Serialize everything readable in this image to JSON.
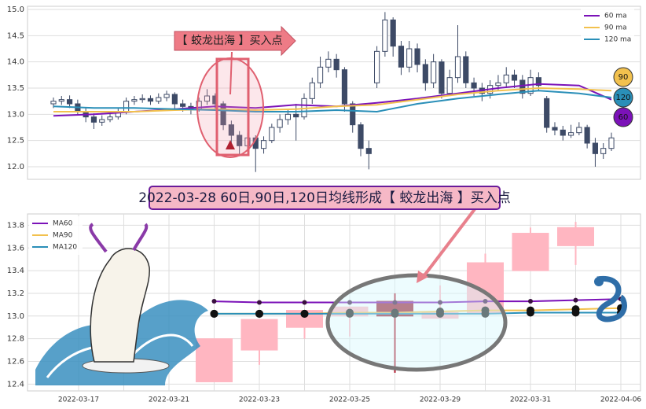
{
  "chart_data": [
    {
      "type": "candlestick",
      "annotation": "【 蛟龙出海 】买入点",
      "ylim": [
        11.76,
        15.06
      ],
      "yticks": [
        {
          "value": 12,
          "label": "12.0"
        },
        12.5,
        {
          "value": 13,
          "label": "13.0"
        },
        13.5,
        {
          "value": 14,
          "label": "14.0"
        },
        14.5,
        {
          "value": 15,
          "label": "15.0"
        }
      ],
      "grid": true,
      "legend": "upper right",
      "up_color": "#ffffff",
      "down_color": "#3d4a66",
      "edge_color": "#3d4a66",
      "open": [
        13.2,
        13.25,
        13.28,
        13.2,
        13.05,
        12.95,
        12.85,
        12.9,
        12.95,
        13.05,
        13.25,
        13.28,
        13.3,
        13.25,
        13.32,
        13.38,
        13.2,
        13.15,
        13.1,
        13.25,
        13.35,
        13.2,
        12.8,
        12.6,
        12.4,
        12.55,
        12.35,
        12.5,
        12.75,
        12.9,
        13.0,
        12.95,
        13.3,
        13.6,
        13.9,
        14.05,
        13.85,
        13.2,
        12.8,
        12.35,
        13.6,
        14.2,
        14.8,
        14.3,
        13.9,
        14.25,
        13.95,
        13.6,
        14.0,
        13.4,
        13.7,
        14.1,
        13.6,
        13.5,
        13.4,
        13.55,
        13.6,
        13.75,
        13.65,
        13.4,
        13.7,
        13.3,
        12.75,
        12.7,
        12.6,
        12.65,
        12.75,
        12.45,
        12.25,
        12.35
      ],
      "close": [
        13.25,
        13.28,
        13.2,
        13.05,
        12.95,
        12.85,
        12.9,
        12.95,
        13.05,
        13.25,
        13.28,
        13.3,
        13.25,
        13.32,
        13.38,
        13.2,
        13.15,
        13.1,
        13.25,
        13.35,
        13.2,
        12.8,
        12.6,
        12.4,
        12.55,
        12.35,
        12.5,
        12.75,
        12.9,
        13.0,
        12.95,
        13.3,
        13.6,
        13.9,
        14.05,
        13.85,
        13.2,
        12.8,
        12.35,
        12.25,
        14.2,
        14.8,
        14.3,
        13.9,
        14.25,
        13.95,
        13.6,
        14.0,
        13.4,
        13.7,
        14.1,
        13.6,
        13.5,
        13.4,
        13.55,
        13.6,
        13.75,
        13.65,
        13.4,
        13.7,
        13.55,
        12.75,
        12.7,
        12.6,
        12.65,
        12.75,
        12.45,
        12.25,
        12.35,
        12.55
      ],
      "high": [
        13.32,
        13.35,
        13.36,
        13.28,
        13.12,
        13.02,
        12.98,
        13.05,
        13.12,
        13.32,
        13.35,
        13.38,
        13.36,
        13.4,
        13.45,
        13.42,
        13.28,
        13.22,
        13.32,
        13.48,
        13.4,
        13.25,
        12.88,
        12.68,
        12.65,
        12.6,
        12.58,
        12.82,
        13.0,
        13.1,
        13.2,
        13.4,
        13.7,
        14.1,
        14.2,
        14.15,
        13.9,
        13.25,
        12.85,
        12.5,
        14.3,
        14.95,
        14.85,
        14.4,
        14.4,
        14.35,
        14.05,
        14.15,
        14.05,
        13.85,
        14.7,
        14.2,
        13.7,
        13.6,
        13.65,
        13.75,
        13.9,
        13.85,
        13.75,
        13.85,
        13.8,
        13.35,
        12.85,
        12.78,
        12.8,
        12.85,
        12.8,
        12.55,
        12.45,
        12.65
      ],
      "low": [
        13.12,
        13.18,
        13.12,
        12.98,
        12.85,
        12.72,
        12.78,
        12.85,
        12.9,
        13.0,
        13.18,
        13.22,
        13.18,
        13.2,
        13.25,
        13.1,
        13.05,
        13.0,
        13.05,
        13.18,
        13.1,
        12.7,
        12.45,
        12.2,
        12.3,
        11.9,
        12.25,
        12.45,
        12.65,
        12.8,
        12.5,
        12.9,
        13.2,
        13.5,
        13.8,
        13.7,
        13.05,
        12.65,
        12.2,
        11.95,
        13.5,
        14.1,
        14.1,
        13.75,
        13.8,
        13.8,
        13.45,
        13.5,
        13.3,
        13.35,
        13.6,
        13.5,
        13.35,
        13.25,
        13.3,
        13.45,
        13.5,
        13.5,
        13.3,
        13.35,
        13.45,
        12.65,
        12.6,
        12.5,
        12.55,
        12.6,
        12.35,
        12.0,
        12.15,
        12.3
      ],
      "series": [
        {
          "name": "60 ma",
          "color": "#7b12b8",
          "x": [
            0,
            5,
            10,
            15,
            20,
            25,
            30,
            35,
            40,
            45,
            50,
            55,
            60,
            65,
            69
          ],
          "values": [
            12.97,
            13.0,
            13.05,
            13.1,
            13.15,
            13.12,
            13.18,
            13.15,
            13.22,
            13.3,
            13.4,
            13.5,
            13.58,
            13.55,
            13.28
          ]
        },
        {
          "name": "90 ma",
          "color": "#f2c14e",
          "x": [
            0,
            5,
            10,
            15,
            20,
            25,
            30,
            35,
            40,
            45,
            50,
            55,
            60,
            65,
            69
          ],
          "values": [
            13.05,
            13.05,
            13.05,
            13.08,
            13.1,
            13.08,
            13.1,
            13.15,
            13.18,
            13.28,
            13.38,
            13.45,
            13.5,
            13.48,
            13.45
          ]
        },
        {
          "name": "120 ma",
          "color": "#2a8fb8",
          "x": [
            0,
            5,
            10,
            15,
            20,
            25,
            30,
            35,
            40,
            45,
            50,
            55,
            60,
            65,
            69
          ],
          "values": [
            13.15,
            13.12,
            13.12,
            13.1,
            13.08,
            13.05,
            13.05,
            13.08,
            13.05,
            13.2,
            13.3,
            13.38,
            13.45,
            13.4,
            13.32
          ]
        }
      ],
      "badges": [
        {
          "text": "90",
          "color": "#f2c14e"
        },
        {
          "text": "120",
          "color": "#2a8fb8"
        },
        {
          "text": "60",
          "color": "#7b12b8"
        }
      ]
    },
    {
      "type": "candlestick",
      "banner": "2022-03-28 60日,90日,120日均线形成【 蛟龙出海 】买入点",
      "categories": [
        "2022-03-17",
        null,
        "2022-03-21",
        null,
        "2022-03-23",
        null,
        "2022-03-25",
        null,
        "2022-03-29",
        null,
        "2022-03-31",
        null,
        "2022-04-06"
      ],
      "ylim": [
        12.34,
        13.9
      ],
      "yticks": [
        12.4,
        12.6,
        12.8,
        {
          "value": 13,
          "label": "13.0"
        },
        13.2,
        13.4,
        13.6,
        13.8
      ],
      "grid": true,
      "legend": "upper left",
      "up_color": "#ffb6c1",
      "down_color": "#9b1c31",
      "edge_color": null,
      "open": [
        null,
        null,
        null,
        12.42,
        12.7,
        12.9,
        13.0,
        13.13,
        12.98,
        13.03,
        13.4,
        13.62,
        null
      ],
      "close": [
        null,
        null,
        null,
        12.8,
        12.97,
        13.05,
        13.08,
        13.0,
        13.03,
        13.47,
        13.73,
        13.78,
        null
      ],
      "high": [
        null,
        null,
        null,
        12.8,
        12.97,
        13.05,
        13.08,
        13.2,
        13.27,
        13.55,
        13.78,
        13.83,
        null
      ],
      "low": [
        null,
        null,
        null,
        12.42,
        12.57,
        12.8,
        12.82,
        12.5,
        12.98,
        13.03,
        13.4,
        13.45,
        null
      ],
      "series": [
        {
          "name": "MA60",
          "color": "#7b12b8",
          "values": [
            null,
            null,
            null,
            13.13,
            13.12,
            13.12,
            13.12,
            13.12,
            13.12,
            13.13,
            13.13,
            13.14,
            13.15
          ]
        },
        {
          "name": "MA90",
          "color": "#f2c14e",
          "values": [
            null,
            null,
            null,
            13.02,
            13.02,
            13.02,
            13.03,
            13.03,
            13.04,
            13.05,
            13.05,
            13.06,
            13.07
          ]
        },
        {
          "name": "MA120",
          "color": "#2a8fb8",
          "values": [
            null,
            null,
            null,
            13.02,
            13.02,
            13.02,
            13.02,
            13.02,
            13.02,
            13.02,
            13.03,
            13.03,
            13.03
          ]
        }
      ]
    }
  ]
}
